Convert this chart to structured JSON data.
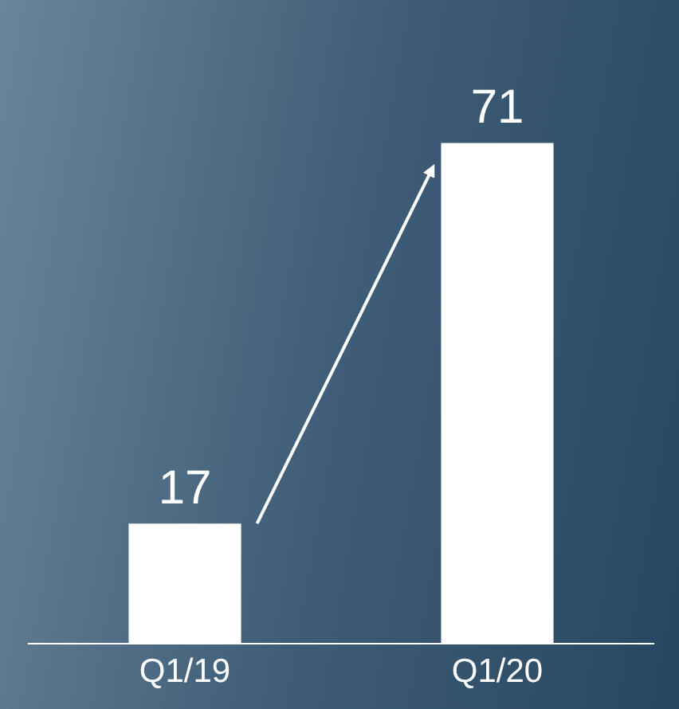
{
  "chart_data": {
    "type": "bar",
    "categories": [
      "Q1/19",
      "Q1/20"
    ],
    "values": [
      17,
      71
    ],
    "color": "#ffffff",
    "data_labels": true,
    "grid": false,
    "legend": false
  }
}
